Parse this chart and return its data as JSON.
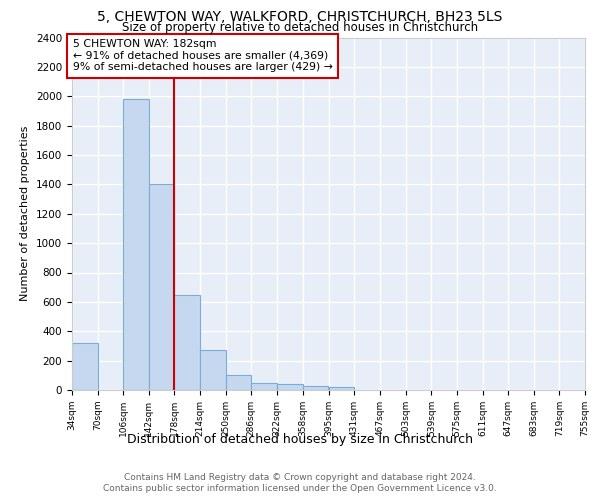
{
  "title1": "5, CHEWTON WAY, WALKFORD, CHRISTCHURCH, BH23 5LS",
  "title2": "Size of property relative to detached houses in Christchurch",
  "xlabel": "Distribution of detached houses by size in Christchurch",
  "ylabel": "Number of detached properties",
  "bin_edges": [
    34,
    70,
    106,
    142,
    178,
    214,
    250,
    286,
    322,
    358,
    395,
    431,
    467,
    503,
    539,
    575,
    611,
    647,
    683,
    719,
    755
  ],
  "bar_heights": [
    320,
    0,
    1980,
    1405,
    650,
    275,
    100,
    45,
    38,
    25,
    18,
    0,
    0,
    0,
    0,
    0,
    0,
    0,
    0,
    0
  ],
  "bar_color": "#c5d8f0",
  "bar_edge_color": "#7aadd4",
  "vline_x": 178,
  "vline_color": "#cc0000",
  "annotation_text": "5 CHEWTON WAY: 182sqm\n← 91% of detached houses are smaller (4,369)\n9% of semi-detached houses are larger (429) →",
  "annotation_box_color": "#cc0000",
  "ylim": [
    0,
    2400
  ],
  "yticks": [
    0,
    200,
    400,
    600,
    800,
    1000,
    1200,
    1400,
    1600,
    1800,
    2000,
    2200,
    2400
  ],
  "background_color": "#e8eef8",
  "grid_color": "#ffffff",
  "footer1": "Contains HM Land Registry data © Crown copyright and database right 2024.",
  "footer2": "Contains public sector information licensed under the Open Government Licence v3.0."
}
